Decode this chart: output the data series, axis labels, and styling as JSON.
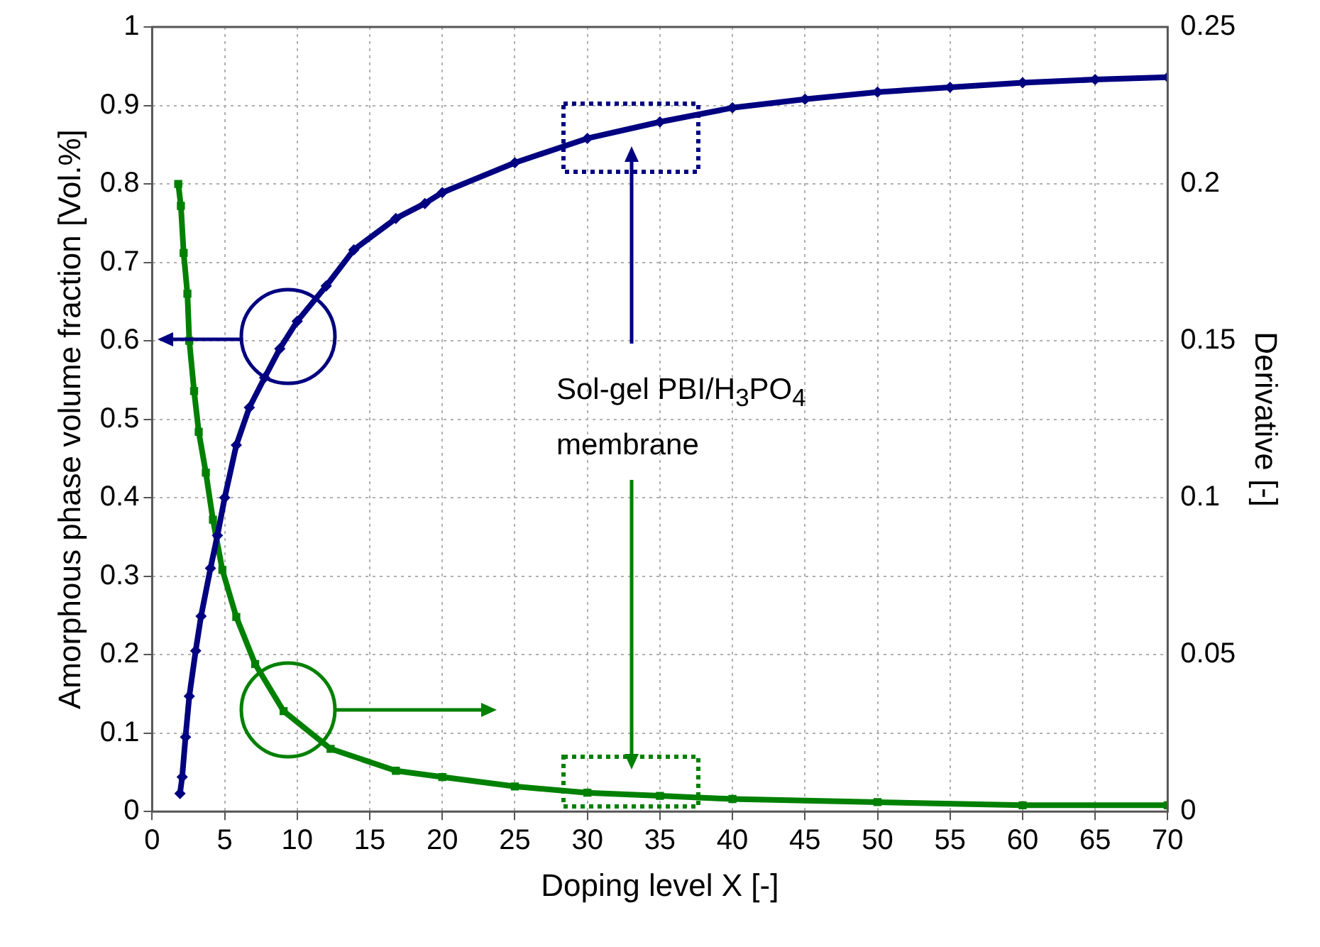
{
  "chart_data": {
    "type": "line",
    "xlabel": "Doping level X [-]",
    "ylabel": "Amorphous phase volume fraction [Vol.%]",
    "y2label": "Derivative [-]",
    "annotations": [
      "Sol-gel PBI/H$_{3}$PO$_{4}$ membrane"
    ],
    "series": [
      {
        "color": "#000080",
        "marker": "diamond",
        "x": [
          1.92,
          2.07,
          2.3,
          2.56,
          3.0,
          3.37,
          4.02,
          4.5,
          5.0,
          5.8,
          6.7,
          7.75,
          8.8,
          10,
          12,
          13.9,
          16.8,
          18.8,
          20,
          25,
          30,
          35,
          40,
          45,
          50,
          55,
          60,
          65,
          70
        ],
        "values": [
          0.023,
          0.044,
          0.095,
          0.147,
          0.205,
          0.249,
          0.31,
          0.352,
          0.4,
          0.467,
          0.515,
          0.553,
          0.59,
          0.625,
          0.67,
          0.716,
          0.756,
          0.775,
          0.789,
          0.827,
          0.858,
          0.879,
          0.897,
          0.908,
          0.917,
          0.923,
          0.929,
          0.933,
          0.936
        ]
      },
      {
        "color": "#008000",
        "marker": "square",
        "axis": "y2",
        "x": [
          1.8,
          1.98,
          2.17,
          2.43,
          2.56,
          2.89,
          3.21,
          3.7,
          4.19,
          4.84,
          5.8,
          7.1,
          9.06,
          12.3,
          16.8,
          20,
          25,
          30,
          35,
          40,
          50,
          60,
          70
        ],
        "values": [
          0.2,
          0.193,
          0.178,
          0.165,
          0.15,
          0.134,
          0.121,
          0.108,
          0.093,
          0.077,
          0.062,
          0.047,
          0.032,
          0.02,
          0.013,
          0.011,
          0.008,
          0.006,
          0.005,
          0.004,
          0.003,
          0.002,
          0.002
        ]
      }
    ],
    "xlim": [
      0,
      70
    ],
    "xticks": [
      0,
      5,
      10,
      15,
      20,
      25,
      30,
      35,
      40,
      45,
      50,
      55,
      60,
      65,
      70
    ],
    "ylim": [
      0,
      1
    ],
    "yticks": [
      0,
      0.1,
      0.2,
      0.3,
      0.4,
      0.5,
      0.6,
      0.7,
      0.8,
      0.9,
      1
    ],
    "y2lim": [
      0,
      0.25
    ],
    "y2ticks": [
      0,
      0.05,
      0.1,
      0.15,
      0.2,
      0.25
    ],
    "grid": true,
    "legend": false,
    "line_style": "solid"
  }
}
